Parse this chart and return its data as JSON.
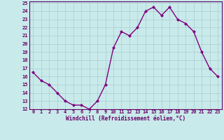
{
  "x": [
    0,
    1,
    2,
    3,
    4,
    5,
    6,
    7,
    8,
    9,
    10,
    11,
    12,
    13,
    14,
    15,
    16,
    17,
    18,
    19,
    20,
    21,
    22,
    23
  ],
  "y": [
    16.5,
    15.5,
    15.0,
    14.0,
    13.0,
    12.5,
    12.5,
    12.0,
    13.0,
    15.0,
    19.5,
    21.5,
    21.0,
    22.0,
    24.0,
    24.5,
    23.5,
    24.5,
    23.0,
    22.5,
    21.5,
    19.0,
    17.0,
    16.0
  ],
  "line_color": "#800080",
  "marker": "D",
  "marker_size": 2.0,
  "bg_color": "#c8eaea",
  "grid_color": "#aacccc",
  "xlabel": "Windchill (Refroidissement éolien,°C)",
  "ylim": [
    12,
    25
  ],
  "xlim": [
    -0.5,
    23.5
  ],
  "yticks": [
    12,
    13,
    14,
    15,
    16,
    17,
    18,
    19,
    20,
    21,
    22,
    23,
    24,
    25
  ],
  "xticks": [
    0,
    1,
    2,
    3,
    4,
    5,
    6,
    7,
    8,
    9,
    10,
    11,
    12,
    13,
    14,
    15,
    16,
    17,
    18,
    19,
    20,
    21,
    22,
    23
  ],
  "axis_fontsize": 5.5,
  "tick_fontsize": 5.0,
  "line_width": 1.0,
  "text_color": "#660066"
}
